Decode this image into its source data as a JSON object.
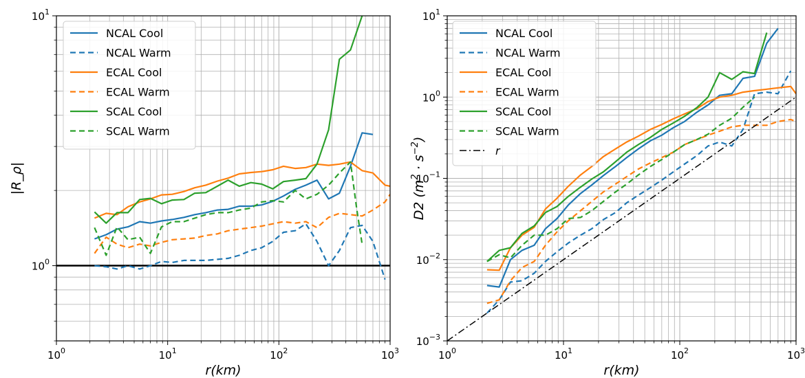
{
  "chart_data": [
    {
      "type": "line",
      "xlabel": "r(km)",
      "ylabel": "|R_ρ|",
      "xscale": "log",
      "yscale": "log",
      "xlim": [
        1,
        1000
      ],
      "ylim": [
        0.5,
        10
      ],
      "grid": true,
      "legend_position": "top-left",
      "x_ticks": [
        {
          "value": 1,
          "base": "10",
          "exp": "0"
        },
        {
          "value": 10,
          "base": "10",
          "exp": "1"
        },
        {
          "value": 100,
          "base": "10",
          "exp": "2"
        },
        {
          "value": 1000,
          "base": "10",
          "exp": "3"
        }
      ],
      "y_ticks": [
        {
          "value": 1,
          "base": "10",
          "exp": "0"
        },
        {
          "value": 10,
          "base": "10",
          "exp": "1"
        }
      ],
      "hline": {
        "y": 1,
        "color": "#000000"
      },
      "series": [
        {
          "name": "NCAL Cool",
          "color": "#1f77b4",
          "dash": "solid",
          "x": [
            2.2,
            2.8,
            3.5,
            4.4,
            5.6,
            7.0,
            8.8,
            11,
            14,
            17.5,
            22,
            28,
            35,
            44,
            56,
            70,
            88,
            110,
            140,
            175,
            220,
            280,
            350,
            440,
            560,
            700
          ],
          "y": [
            1.28,
            1.33,
            1.4,
            1.43,
            1.5,
            1.48,
            1.51,
            1.53,
            1.56,
            1.6,
            1.63,
            1.67,
            1.68,
            1.73,
            1.73,
            1.75,
            1.81,
            1.9,
            2.02,
            2.1,
            2.2,
            1.85,
            1.95,
            2.5,
            3.4,
            3.35
          ]
        },
        {
          "name": "NCAL Warm",
          "color": "#1f77b4",
          "dash": "dashed",
          "x": [
            2.2,
            2.8,
            3.5,
            4.4,
            5.6,
            7.0,
            8.8,
            11,
            14,
            17.5,
            22,
            28,
            35,
            44,
            56,
            70,
            88,
            110,
            140,
            175,
            220,
            280,
            350,
            440,
            560,
            700,
            900
          ],
          "y": [
            1.0,
            0.99,
            0.97,
            1.0,
            0.97,
            1.0,
            1.04,
            1.03,
            1.05,
            1.05,
            1.05,
            1.06,
            1.07,
            1.1,
            1.15,
            1.18,
            1.25,
            1.36,
            1.38,
            1.47,
            1.25,
            1.0,
            1.15,
            1.42,
            1.45,
            1.25,
            0.88
          ]
        },
        {
          "name": "ECAL Cool",
          "color": "#ff7f0e",
          "dash": "solid",
          "x": [
            2.2,
            2.8,
            3.5,
            4.4,
            5.6,
            7.0,
            8.8,
            11,
            14,
            17.5,
            22,
            28,
            35,
            44,
            56,
            70,
            88,
            110,
            140,
            175,
            220,
            280,
            350,
            440,
            560,
            700,
            900,
            1000
          ],
          "y": [
            1.55,
            1.62,
            1.6,
            1.72,
            1.8,
            1.85,
            1.92,
            1.93,
            1.98,
            2.05,
            2.1,
            2.18,
            2.24,
            2.33,
            2.36,
            2.38,
            2.42,
            2.5,
            2.45,
            2.47,
            2.55,
            2.52,
            2.55,
            2.6,
            2.4,
            2.35,
            2.1,
            2.08
          ]
        },
        {
          "name": "ECAL Warm",
          "color": "#ff7f0e",
          "dash": "dashed",
          "x": [
            2.2,
            2.8,
            3.5,
            4.4,
            5.6,
            7.0,
            8.8,
            11,
            14,
            17.5,
            22,
            28,
            35,
            44,
            56,
            70,
            88,
            110,
            140,
            175,
            220,
            280,
            350,
            440,
            560,
            700,
            900,
            1000
          ],
          "y": [
            1.12,
            1.3,
            1.22,
            1.18,
            1.22,
            1.2,
            1.24,
            1.27,
            1.28,
            1.29,
            1.32,
            1.34,
            1.38,
            1.4,
            1.42,
            1.44,
            1.47,
            1.5,
            1.48,
            1.5,
            1.42,
            1.56,
            1.62,
            1.6,
            1.58,
            1.67,
            1.8,
            1.93
          ]
        },
        {
          "name": "SCAL Cool",
          "color": "#2ca02c",
          "dash": "solid",
          "x": [
            2.2,
            2.8,
            3.5,
            4.4,
            5.6,
            7.0,
            8.8,
            11,
            14,
            17.5,
            22,
            28,
            35,
            44,
            56,
            70,
            88,
            110,
            140,
            175,
            220,
            280,
            350,
            440,
            560
          ],
          "y": [
            1.64,
            1.48,
            1.63,
            1.63,
            1.84,
            1.86,
            1.77,
            1.83,
            1.84,
            1.95,
            1.96,
            2.08,
            2.2,
            2.08,
            2.15,
            2.12,
            2.03,
            2.17,
            2.2,
            2.23,
            2.55,
            3.5,
            6.7,
            7.3,
            10.0
          ]
        },
        {
          "name": "SCAL Warm",
          "color": "#2ca02c",
          "dash": "dashed",
          "x": [
            2.2,
            2.8,
            3.5,
            4.4,
            5.6,
            7.0,
            8.8,
            11,
            14,
            17.5,
            22,
            28,
            35,
            44,
            56,
            70,
            88,
            110,
            140,
            175,
            220,
            280,
            350,
            440,
            500,
            560
          ],
          "y": [
            1.42,
            1.1,
            1.43,
            1.27,
            1.3,
            1.12,
            1.43,
            1.5,
            1.5,
            1.55,
            1.6,
            1.63,
            1.63,
            1.67,
            1.7,
            1.8,
            1.82,
            1.8,
            2.0,
            1.85,
            1.93,
            2.1,
            2.35,
            2.6,
            1.7,
            1.22
          ]
        }
      ]
    },
    {
      "type": "line",
      "xlabel": "r(km)",
      "ylabel_prefix": "D2",
      "ylabel_units": "m",
      "ylabel_exp1": "2",
      "ylabel_dot": "·",
      "ylabel_s": "s",
      "ylabel_exp2": "−2",
      "xscale": "log",
      "yscale": "log",
      "xlim": [
        1,
        1000
      ],
      "ylim": [
        0.001,
        10
      ],
      "grid": true,
      "legend_position": "top-left",
      "x_ticks": [
        {
          "value": 1,
          "base": "10",
          "exp": "0"
        },
        {
          "value": 10,
          "base": "10",
          "exp": "1"
        },
        {
          "value": 100,
          "base": "10",
          "exp": "2"
        },
        {
          "value": 1000,
          "base": "10",
          "exp": "3"
        }
      ],
      "y_ticks": [
        {
          "value": 0.001,
          "base": "10",
          "exp": "−3"
        },
        {
          "value": 0.01,
          "base": "10",
          "exp": "−2"
        },
        {
          "value": 0.1,
          "base": "10",
          "exp": "−1"
        },
        {
          "value": 1,
          "base": "10",
          "exp": "0"
        },
        {
          "value": 10,
          "base": "10",
          "exp": "1"
        }
      ],
      "series": [
        {
          "name": "NCAL Cool",
          "color": "#1f77b4",
          "dash": "solid",
          "x": [
            2.2,
            2.8,
            3.5,
            4.4,
            5.6,
            7.0,
            8.8,
            11,
            14,
            17.5,
            22,
            28,
            35,
            44,
            56,
            70,
            88,
            110,
            140,
            175,
            220,
            280,
            350,
            440,
            560,
            700
          ],
          "y": [
            0.0048,
            0.0046,
            0.01,
            0.013,
            0.015,
            0.024,
            0.032,
            0.047,
            0.065,
            0.083,
            0.108,
            0.14,
            0.18,
            0.23,
            0.29,
            0.34,
            0.42,
            0.5,
            0.65,
            0.8,
            1.05,
            1.1,
            1.7,
            1.8,
            4.6,
            7.0
          ]
        },
        {
          "name": "NCAL Warm",
          "color": "#1f77b4",
          "dash": "dashed",
          "x": [
            2.2,
            2.8,
            3.5,
            4.4,
            5.6,
            7.0,
            8.8,
            11,
            14,
            17.5,
            22,
            28,
            35,
            44,
            56,
            70,
            88,
            110,
            140,
            175,
            220,
            280,
            350,
            440,
            560,
            700,
            900
          ],
          "y": [
            0.0022,
            0.0032,
            0.0053,
            0.0055,
            0.0068,
            0.0095,
            0.0125,
            0.016,
            0.02,
            0.024,
            0.031,
            0.038,
            0.05,
            0.062,
            0.077,
            0.095,
            0.12,
            0.15,
            0.19,
            0.25,
            0.28,
            0.25,
            0.4,
            1.1,
            1.15,
            1.1,
            2.1
          ]
        },
        {
          "name": "ECAL Cool",
          "color": "#ff7f0e",
          "dash": "solid",
          "x": [
            2.2,
            2.8,
            3.5,
            4.4,
            5.6,
            7.0,
            8.8,
            11,
            14,
            17.5,
            22,
            28,
            35,
            44,
            56,
            70,
            88,
            110,
            140,
            175,
            220,
            280,
            350,
            440,
            560,
            700,
            900,
            1000
          ],
          "y": [
            0.0075,
            0.0074,
            0.014,
            0.02,
            0.025,
            0.042,
            0.057,
            0.08,
            0.11,
            0.14,
            0.185,
            0.23,
            0.28,
            0.33,
            0.4,
            0.46,
            0.54,
            0.62,
            0.72,
            0.88,
            1.0,
            1.05,
            1.15,
            1.2,
            1.25,
            1.3,
            1.35,
            1.1
          ]
        },
        {
          "name": "ECAL Warm",
          "color": "#ff7f0e",
          "dash": "dashed",
          "x": [
            2.2,
            2.8,
            3.5,
            4.4,
            5.6,
            7.0,
            8.8,
            11,
            14,
            17.5,
            22,
            28,
            35,
            44,
            56,
            70,
            88,
            110,
            140,
            175,
            220,
            280,
            350,
            440,
            560,
            700,
            900,
            1000
          ],
          "y": [
            0.0029,
            0.0032,
            0.0055,
            0.008,
            0.0095,
            0.015,
            0.022,
            0.03,
            0.04,
            0.052,
            0.068,
            0.085,
            0.105,
            0.13,
            0.155,
            0.18,
            0.21,
            0.26,
            0.3,
            0.34,
            0.38,
            0.43,
            0.45,
            0.45,
            0.45,
            0.5,
            0.53,
            0.5
          ]
        },
        {
          "name": "SCAL Cool",
          "color": "#2ca02c",
          "dash": "solid",
          "x": [
            2.2,
            2.8,
            3.5,
            4.4,
            5.6,
            7.0,
            8.8,
            11,
            14,
            17.5,
            22,
            28,
            35,
            44,
            56,
            70,
            88,
            110,
            140,
            175,
            220,
            280,
            350,
            440,
            560
          ],
          "y": [
            0.0095,
            0.013,
            0.014,
            0.021,
            0.026,
            0.038,
            0.045,
            0.06,
            0.078,
            0.098,
            0.12,
            0.16,
            0.21,
            0.26,
            0.32,
            0.4,
            0.48,
            0.58,
            0.74,
            1.0,
            2.0,
            1.65,
            2.05,
            1.95,
            6.2
          ]
        },
        {
          "name": "SCAL Warm",
          "color": "#2ca02c",
          "dash": "dashed",
          "x": [
            2.2,
            2.8,
            3.5,
            4.4,
            5.6,
            7.0,
            8.8,
            11,
            14,
            17.5,
            22,
            28,
            35,
            44,
            56,
            70,
            88,
            110,
            140,
            175,
            220,
            280,
            350,
            440
          ],
          "y": [
            0.0095,
            0.0115,
            0.0105,
            0.015,
            0.02,
            0.02,
            0.024,
            0.032,
            0.033,
            0.04,
            0.052,
            0.068,
            0.085,
            0.11,
            0.14,
            0.17,
            0.21,
            0.26,
            0.3,
            0.35,
            0.45,
            0.55,
            0.75,
            1.0
          ]
        },
        {
          "name": "r",
          "color": "#000000",
          "dash": "dashdot",
          "italic": true,
          "x": [
            1,
            1000
          ],
          "y": [
            0.001,
            1
          ]
        }
      ]
    }
  ]
}
